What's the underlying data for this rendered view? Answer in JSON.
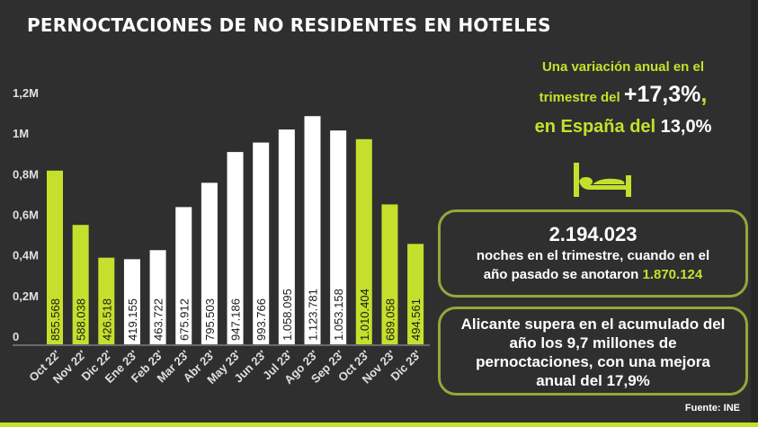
{
  "title": "PERNOCTACIONES DE NO RESIDENTES EN HOTELES",
  "headline": {
    "line1": "Una variación anual en el",
    "line2_prefix": "trimestre del ",
    "line2_value": "+17,3%",
    "line2_suffix": ",",
    "line3_prefix": "en España del ",
    "line3_value": "13,0%"
  },
  "icon": "bed-icon",
  "box1": {
    "number": "2.194.023",
    "text1": "noches en el trimestre, cuando en el",
    "text2_prefix": "año pasado se anotaron ",
    "text2_value": "1.870.124"
  },
  "box2": {
    "text": "Alicante supera en el acumulado del año los 9,7 millones de pernoctaciones, con una mejora anual del 17,9%"
  },
  "source": "Fuente: INE",
  "colors": {
    "accent": "#c5e02c",
    "neutral_bar": "#ffffff",
    "background": "#2f2f2f",
    "box_border": "#93a83a"
  },
  "chart_data": {
    "type": "bar",
    "title": "PERNOCTACIONES DE NO RESIDENTES EN HOTELES",
    "xlabel": "",
    "ylabel": "",
    "ylim": [
      0,
      1200000
    ],
    "yticks": [
      0,
      200000,
      400000,
      600000,
      800000,
      1000000,
      1200000
    ],
    "ytick_labels": [
      "0",
      "0,2M",
      "0,4M",
      "0,6M",
      "0,8M",
      "1M",
      "1,2M"
    ],
    "grid": false,
    "categories": [
      "Oct 22'",
      "Nov 22'",
      "Dic 22'",
      "Ene 23'",
      "Feb 23'",
      "Mar 23'",
      "Abr 23'",
      "May 23'",
      "Jun 23'",
      "Jul 23'",
      "Ago 23'",
      "Sep 23'",
      "Oct 23'",
      "Nov 23'",
      "Dic 23'"
    ],
    "values": [
      855568,
      588038,
      426518,
      419155,
      463722,
      675912,
      795503,
      947186,
      993766,
      1058095,
      1123781,
      1053158,
      1010404,
      689058,
      494561
    ],
    "value_labels": [
      "855.568",
      "588.038",
      "426.518",
      "419.155",
      "463.722",
      "675.912",
      "795.503",
      "947.186",
      "993.766",
      "1.058.095",
      "1.123.781",
      "1.053.158",
      "1.010.404",
      "689.058",
      "494.561"
    ],
    "highlighted": [
      true,
      true,
      true,
      false,
      false,
      false,
      false,
      false,
      false,
      false,
      false,
      false,
      true,
      true,
      true
    ]
  }
}
